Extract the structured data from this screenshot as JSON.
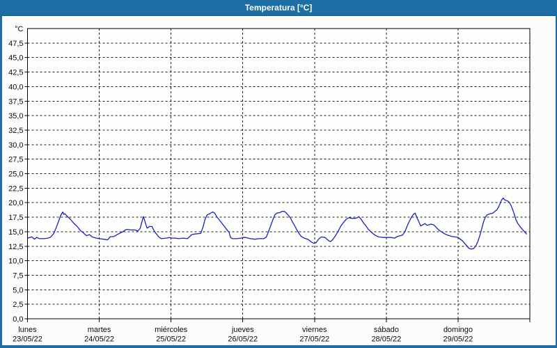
{
  "window": {
    "title": "Temperatura [°C]"
  },
  "colors": {
    "titlebar": "#1c6ea4",
    "frame": "#1c6ea4",
    "background": "#fcfdfa",
    "plot_background": "#fefffc",
    "plot_border": "#000000",
    "gridline": "#1a1a1a",
    "axis_text": "#0a0a0a",
    "line": "#1a1fc0"
  },
  "chart_data": {
    "type": "line",
    "title": "Temperatura [°C]",
    "y_unit_label": "°C",
    "ylim": [
      0,
      50
    ],
    "y_tick_step": 2.5,
    "grid": "dashed",
    "legend": "none",
    "y_tick_values": [
      0,
      2.5,
      5,
      7.5,
      10,
      12.5,
      15,
      17.5,
      20,
      22.5,
      25,
      27.5,
      30,
      32.5,
      35,
      37.5,
      40,
      42.5,
      45,
      47.5
    ],
    "y_tick_labels": [
      "0,0",
      "2,5",
      "5,0",
      "7,5",
      "10,0",
      "12,5",
      "15,0",
      "17,5",
      "20,0",
      "22,5",
      "25,0",
      "27,5",
      "30,0",
      "32,5",
      "35,0",
      "37,5",
      "40,0",
      "42,5",
      "45,0",
      "47,5"
    ],
    "x_days": [
      {
        "name": "lunes",
        "date": "23/05/22"
      },
      {
        "name": "martes",
        "date": "24/05/22"
      },
      {
        "name": "miércoles",
        "date": "25/05/22"
      },
      {
        "name": "jueves",
        "date": "26/05/22"
      },
      {
        "name": "viernes",
        "date": "27/05/22"
      },
      {
        "name": "sábado",
        "date": "28/05/22"
      },
      {
        "name": "domingo",
        "date": "29/05/22"
      }
    ],
    "x_axis_note": "hours from Monday 00:00, 7 days total (168 h)",
    "series": [
      {
        "name": "Temperatura",
        "points": [
          [
            0,
            13.9
          ],
          [
            0.8,
            14.0
          ],
          [
            1.5,
            14.1
          ],
          [
            2.3,
            13.7
          ],
          [
            3.1,
            14.0
          ],
          [
            4,
            13.8
          ],
          [
            5.5,
            13.8
          ],
          [
            7,
            13.9
          ],
          [
            7.8,
            14.1
          ],
          [
            8.8,
            14.7
          ],
          [
            9.6,
            15.7
          ],
          [
            10.4,
            16.8
          ],
          [
            11.1,
            17.8
          ],
          [
            11.8,
            18.4
          ],
          [
            12.1,
            18.0
          ],
          [
            12.5,
            18.1
          ],
          [
            13,
            17.8
          ],
          [
            13.6,
            17.5
          ],
          [
            14.3,
            17.2
          ],
          [
            15.4,
            16.5
          ],
          [
            16.6,
            15.9
          ],
          [
            17.7,
            15.2
          ],
          [
            18.9,
            14.7
          ],
          [
            19.7,
            14.3
          ],
          [
            20.7,
            14.5
          ],
          [
            21.6,
            14.1
          ],
          [
            23,
            13.9
          ],
          [
            24,
            13.8
          ],
          [
            25.5,
            13.7
          ],
          [
            26.8,
            13.6
          ],
          [
            27.6,
            14.1
          ],
          [
            29,
            14.2
          ],
          [
            30,
            14.5
          ],
          [
            31.1,
            14.8
          ],
          [
            31.9,
            15.0
          ],
          [
            32.7,
            15.3
          ],
          [
            33.4,
            15.4
          ],
          [
            34.5,
            15.3
          ],
          [
            36,
            15.3
          ],
          [
            36.9,
            15.1
          ],
          [
            37.7,
            15.6
          ],
          [
            38.2,
            16.6
          ],
          [
            38.8,
            17.6
          ],
          [
            39.5,
            16.4
          ],
          [
            40,
            15.6
          ],
          [
            40.8,
            15.9
          ],
          [
            41.6,
            15.9
          ],
          [
            42.3,
            15.2
          ],
          [
            43.1,
            14.6
          ],
          [
            43.9,
            14.1
          ],
          [
            44.7,
            13.8
          ],
          [
            46.4,
            13.9
          ],
          [
            47.4,
            14.0
          ],
          [
            48,
            13.9
          ],
          [
            49.5,
            13.9
          ],
          [
            50.5,
            13.8
          ],
          [
            52,
            13.9
          ],
          [
            53.5,
            13.8
          ],
          [
            54.3,
            14.2
          ],
          [
            54.9,
            14.5
          ],
          [
            56,
            14.6
          ],
          [
            57.9,
            14.7
          ],
          [
            58.7,
            15.8
          ],
          [
            59.4,
            17.2
          ],
          [
            60.1,
            17.9
          ],
          [
            61,
            18.1
          ],
          [
            61.9,
            18.4
          ],
          [
            62.6,
            18.2
          ],
          [
            63.4,
            17.5
          ],
          [
            64.5,
            16.8
          ],
          [
            65.7,
            16.0
          ],
          [
            66.9,
            15.2
          ],
          [
            67.4,
            14.9
          ],
          [
            67.9,
            14.0
          ],
          [
            68.5,
            13.8
          ],
          [
            70,
            13.8
          ],
          [
            71.5,
            13.9
          ],
          [
            72,
            14.0
          ],
          [
            73,
            14.0
          ],
          [
            74.5,
            13.8
          ],
          [
            76,
            13.7
          ],
          [
            77.5,
            13.8
          ],
          [
            79,
            13.8
          ],
          [
            79.9,
            14.1
          ],
          [
            80.6,
            15.0
          ],
          [
            81.3,
            16.0
          ],
          [
            82,
            17.0
          ],
          [
            82.7,
            17.9
          ],
          [
            83.4,
            18.2
          ],
          [
            84.4,
            18.3
          ],
          [
            85.1,
            18.5
          ],
          [
            85.9,
            18.5
          ],
          [
            86.6,
            18.2
          ],
          [
            87.3,
            17.8
          ],
          [
            88,
            17.3
          ],
          [
            88.7,
            16.6
          ],
          [
            89.4,
            16.0
          ],
          [
            90.1,
            15.3
          ],
          [
            90.8,
            14.7
          ],
          [
            91.5,
            14.2
          ],
          [
            92.5,
            13.9
          ],
          [
            93.7,
            13.7
          ],
          [
            95,
            13.2
          ],
          [
            95.8,
            13.0
          ],
          [
            96.5,
            13.1
          ],
          [
            97.5,
            13.8
          ],
          [
            98.3,
            14.1
          ],
          [
            99.5,
            14.0
          ],
          [
            100.6,
            13.5
          ],
          [
            101.3,
            13.3
          ],
          [
            102,
            13.6
          ],
          [
            103,
            14.3
          ],
          [
            103.8,
            15.0
          ],
          [
            104.8,
            16.0
          ],
          [
            105.7,
            16.6
          ],
          [
            106.7,
            17.2
          ],
          [
            107.5,
            17.4
          ],
          [
            108.5,
            17.3
          ],
          [
            109.5,
            17.3
          ],
          [
            110.3,
            17.4
          ],
          [
            110.8,
            17.6
          ],
          [
            111.5,
            17.2
          ],
          [
            112.4,
            16.5
          ],
          [
            113.2,
            16.0
          ],
          [
            114,
            15.4
          ],
          [
            114.8,
            15.0
          ],
          [
            115.7,
            14.6
          ],
          [
            116.5,
            14.3
          ],
          [
            117.5,
            14.1
          ],
          [
            119,
            14.0
          ],
          [
            120,
            14.0
          ],
          [
            121.5,
            14.0
          ],
          [
            122.8,
            13.9
          ],
          [
            123.8,
            14.2
          ],
          [
            124.6,
            14.3
          ],
          [
            125.4,
            14.4
          ],
          [
            126.2,
            15.0
          ],
          [
            127,
            16.0
          ],
          [
            127.7,
            16.8
          ],
          [
            128.4,
            17.5
          ],
          [
            129.1,
            18.0
          ],
          [
            129.6,
            18.2
          ],
          [
            130.1,
            17.6
          ],
          [
            130.8,
            16.8
          ],
          [
            131.5,
            16.0
          ],
          [
            132.2,
            16.2
          ],
          [
            132.9,
            16.4
          ],
          [
            133.6,
            16.1
          ],
          [
            134.3,
            16.2
          ],
          [
            135,
            16.3
          ],
          [
            135.8,
            16.2
          ],
          [
            136.6,
            15.8
          ],
          [
            137.5,
            15.3
          ],
          [
            138.4,
            15.0
          ],
          [
            139.3,
            14.7
          ],
          [
            140.5,
            14.4
          ],
          [
            141.8,
            14.2
          ],
          [
            143,
            14.1
          ],
          [
            144,
            14.0
          ],
          [
            145.5,
            13.4
          ],
          [
            146.5,
            12.8
          ],
          [
            147.5,
            12.2
          ],
          [
            148.3,
            12.0
          ],
          [
            149.2,
            12.1
          ],
          [
            150,
            12.6
          ],
          [
            150.6,
            13.3
          ],
          [
            151.2,
            14.2
          ],
          [
            151.8,
            15.3
          ],
          [
            152.4,
            16.5
          ],
          [
            153,
            17.4
          ],
          [
            153.7,
            17.9
          ],
          [
            154.8,
            18.1
          ],
          [
            155.6,
            18.2
          ],
          [
            156.3,
            18.5
          ],
          [
            157,
            18.8
          ],
          [
            157.6,
            19.3
          ],
          [
            158.1,
            19.9
          ],
          [
            158.6,
            20.5
          ],
          [
            159.1,
            20.8
          ],
          [
            159.5,
            20.5
          ],
          [
            160,
            20.4
          ],
          [
            160.6,
            20.3
          ],
          [
            161.2,
            20.0
          ],
          [
            161.8,
            19.4
          ],
          [
            162.4,
            18.6
          ],
          [
            162.9,
            17.8
          ],
          [
            163.4,
            17.0
          ],
          [
            164,
            16.4
          ],
          [
            164.7,
            15.9
          ],
          [
            165.5,
            15.4
          ],
          [
            166.2,
            15.0
          ],
          [
            166.9,
            14.6
          ]
        ]
      }
    ]
  }
}
